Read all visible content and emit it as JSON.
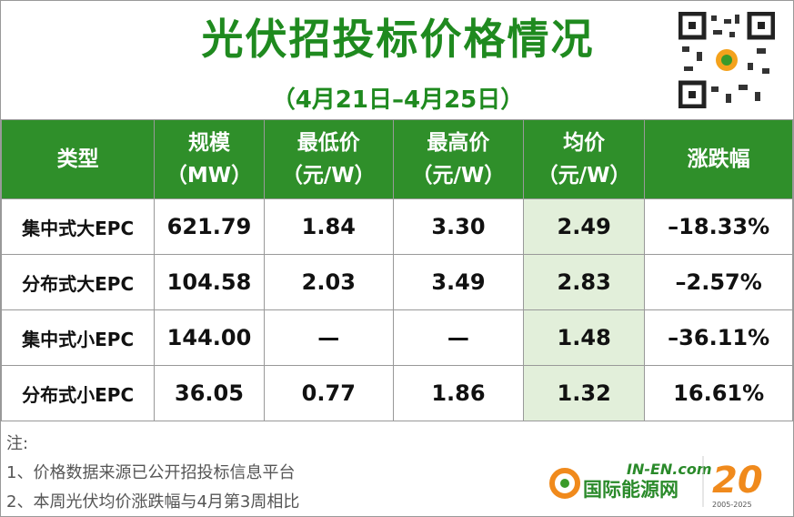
{
  "header": {
    "title": "光伏招投标价格情况",
    "subtitle": "（4月21日–4月25日）"
  },
  "table": {
    "columns": [
      [
        "类型"
      ],
      [
        "规模",
        "（MW）"
      ],
      [
        "最低价",
        "（元/W）"
      ],
      [
        "最高价",
        "（元/W）"
      ],
      [
        "均价",
        "（元/W）"
      ],
      [
        "涨跌幅"
      ]
    ],
    "rows": [
      [
        "集中式大EPC",
        "621.79",
        "1.84",
        "3.30",
        "2.49",
        "–18.33%"
      ],
      [
        "分布式大EPC",
        "104.58",
        "2.03",
        "3.49",
        "2.83",
        "–2.57%"
      ],
      [
        "集中式小EPC",
        "144.00",
        "—",
        "—",
        "1.48",
        "–36.11%"
      ],
      [
        "分布式小EPC",
        "36.05",
        "0.77",
        "1.86",
        "1.32",
        "16.61%"
      ]
    ]
  },
  "notes": {
    "label": "注:",
    "items": [
      "1、价格数据来源已公开招投标信息平台",
      "2、本周光伏均价涨跌幅与4月第3周相比"
    ]
  },
  "logo": {
    "site": "IN-EN.com",
    "name": "国际能源网",
    "years": "2005-2025"
  }
}
